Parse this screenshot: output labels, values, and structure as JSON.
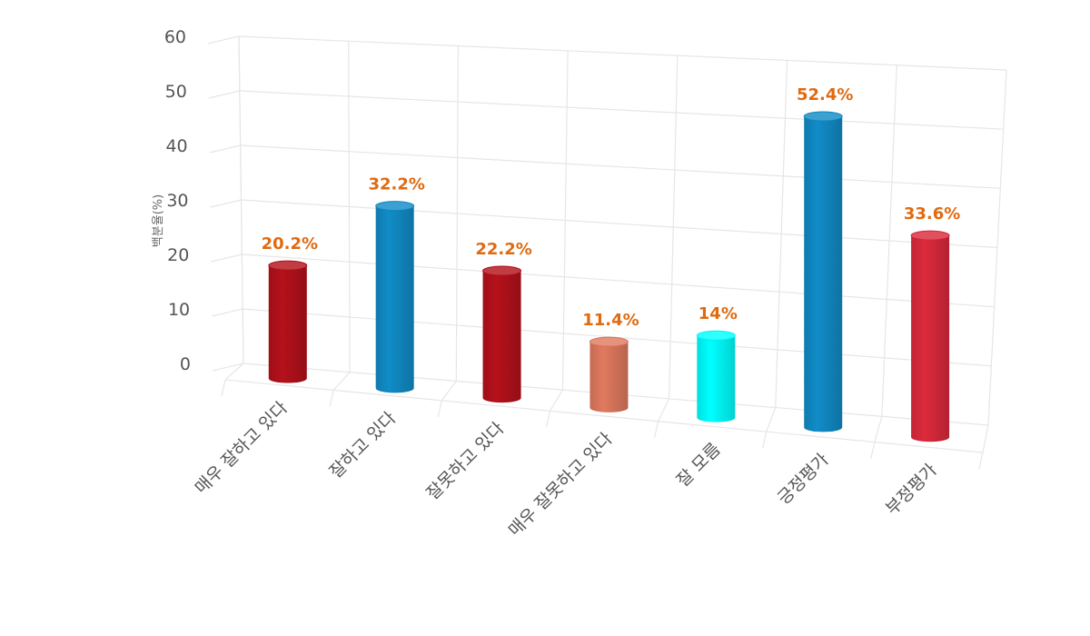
{
  "chart_data": {
    "type": "bar",
    "ylabel": "백분율(%)",
    "ylim": [
      0,
      60
    ],
    "yticks": [
      "0",
      "10",
      "20",
      "30",
      "40",
      "50",
      "60"
    ],
    "categories": [
      "매우 잘하고 있다",
      "잘하고 있다",
      "잘못하고 있다",
      "매우 잘못하고 있다",
      "잘 모름",
      "긍정평가",
      "부정평가"
    ],
    "values": [
      20.2,
      32.2,
      22.2,
      11.4,
      14,
      52.4,
      33.6
    ],
    "data_labels": [
      "20.2%",
      "32.2%",
      "22.2%",
      "11.4%",
      "14%",
      "52.4%",
      "33.6%"
    ],
    "colors": [
      "#b5111b",
      "#118cc7",
      "#b5111b",
      "#e07a5f",
      "#00ffff",
      "#118cc7",
      "#dc2a3c"
    ],
    "grid": true,
    "legend": "none",
    "style": "3d-cylinder"
  }
}
